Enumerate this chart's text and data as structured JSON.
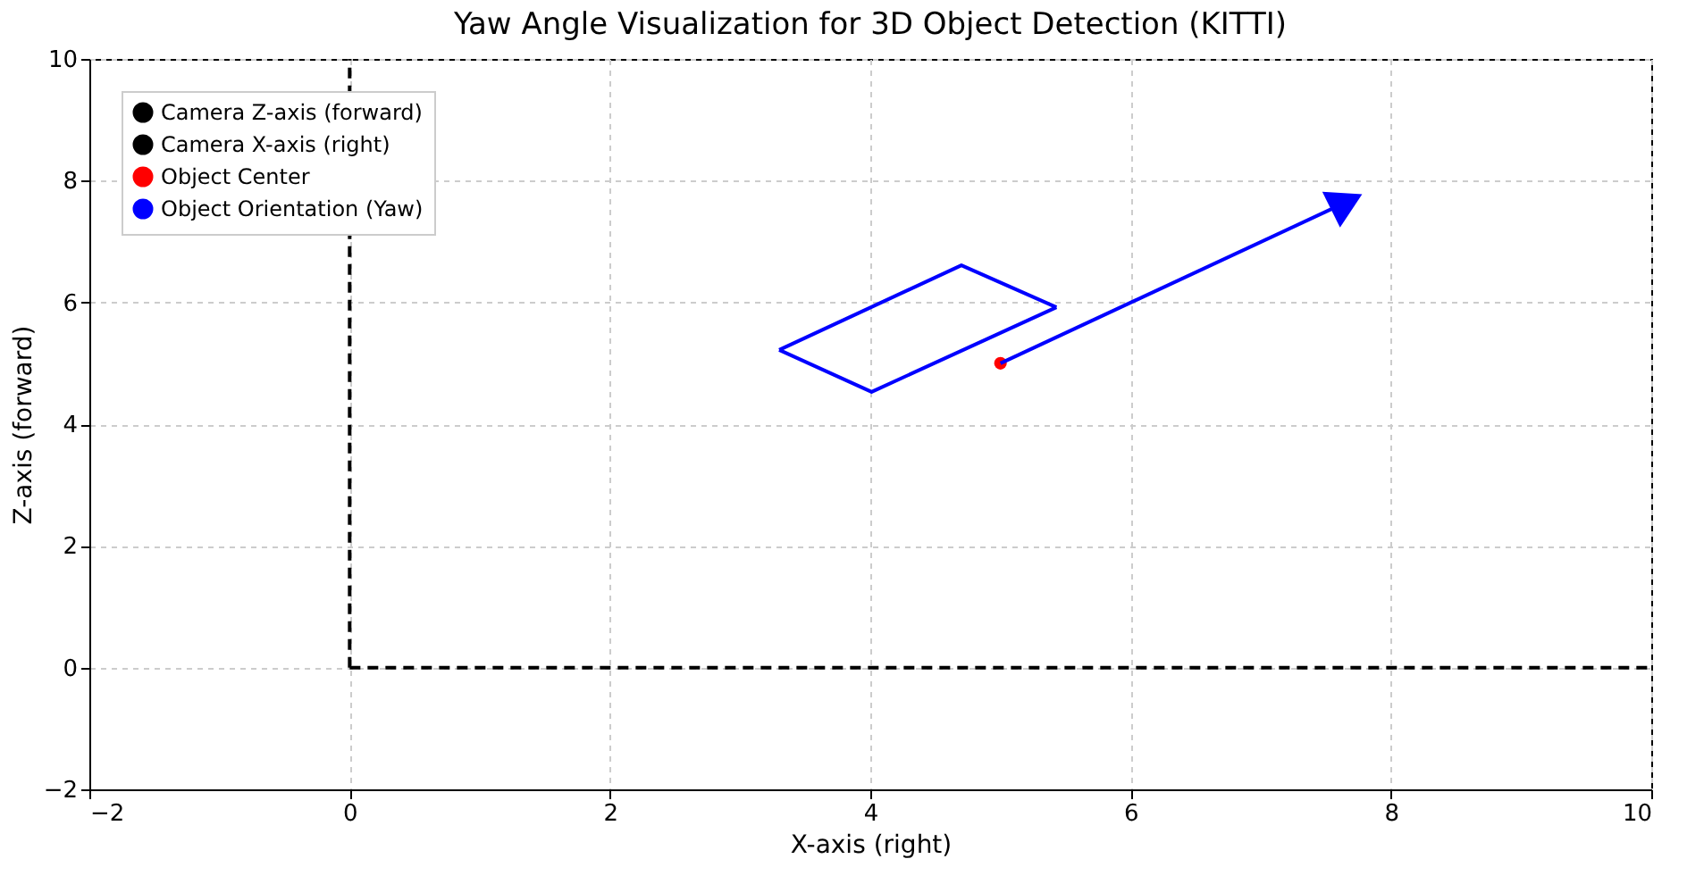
{
  "chart_data": {
    "type": "line",
    "title": "Yaw Angle Visualization for 3D Object Detection (KITTI)",
    "xlabel": "X-axis (right)",
    "ylabel": "Z-axis (forward)",
    "xlim": [
      -2,
      10
    ],
    "xticks": [
      -2,
      0,
      2,
      4,
      6,
      8,
      10
    ],
    "ylim": [
      -2,
      10
    ],
    "yticks": [
      -2,
      0,
      2,
      4,
      6,
      8,
      10
    ],
    "grid": true,
    "legend": "top left",
    "series": [
      {
        "name": "Camera Z-axis (forward)",
        "color": "#000000",
        "line_style": "dashed",
        "x": [
          0,
          0
        ],
        "values": [
          0,
          10
        ]
      },
      {
        "name": "Camera X-axis (right)",
        "color": "#000000",
        "line_style": "dashed",
        "x": [
          0,
          10
        ],
        "values": [
          0,
          0
        ]
      },
      {
        "name": "Object Center",
        "type": "scatter",
        "color": "#ff0000",
        "marker": "circle",
        "x": [
          5
        ],
        "values": [
          5
        ]
      },
      {
        "name": "Object Orientation (Yaw)",
        "color": "#0000ff",
        "marker": "triangle",
        "x": [
          5,
          7.62
        ],
        "values": [
          5,
          7.61
        ]
      },
      {
        "color": "#0000ff",
        "x": [
          3.3,
          4.7,
          5.43
        ],
        "values": [
          5.22,
          6.61,
          5.92
        ]
      },
      {
        "color": "#0000ff",
        "x": [
          3.3,
          4.01,
          5.43
        ],
        "values": [
          5.22,
          4.53,
          5.92
        ]
      }
    ]
  }
}
